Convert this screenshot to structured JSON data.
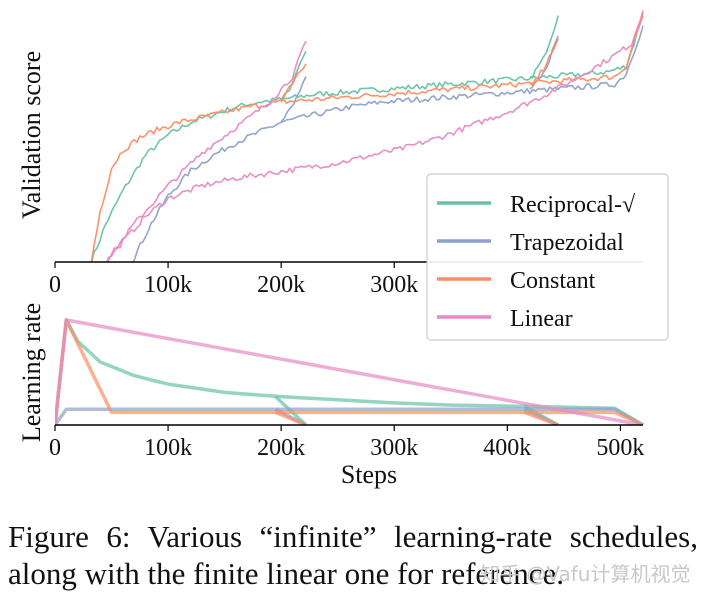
{
  "colors": {
    "Reciprocal-√": "#66c2a5",
    "Trapezoidal": "#8da0cb",
    "Constant": "#fc8d62",
    "Linear": "#e78ac3"
  },
  "chart_data": [
    {
      "type": "line",
      "title": "",
      "xlabel": "",
      "ylabel": "Validation score",
      "xlim": [
        0,
        520000
      ],
      "ylim": [
        0,
        1
      ],
      "xticks": [
        0,
        100000,
        200000,
        300000
      ],
      "xtick_labels": [
        "0",
        "100k",
        "200k",
        "300k"
      ],
      "legend": [
        "Reciprocal-√",
        "Trapezoidal",
        "Constant",
        "Linear"
      ],
      "legend_position": "center-right",
      "series": [
        {
          "name": "Reciprocal-√",
          "points": [
            [
              32000,
              0.0
            ],
            [
              45000,
              0.15
            ],
            [
              60000,
              0.28
            ],
            [
              80000,
              0.42
            ],
            [
              100000,
              0.5
            ],
            [
              120000,
              0.55
            ],
            [
              140000,
              0.58
            ],
            [
              160000,
              0.61
            ],
            [
              180000,
              0.63
            ],
            [
              200000,
              0.64
            ],
            [
              230000,
              0.66
            ],
            [
              260000,
              0.67
            ],
            [
              290000,
              0.68
            ],
            [
              320000,
              0.69
            ],
            [
              350000,
              0.7
            ],
            [
              380000,
              0.71
            ],
            [
              410000,
              0.72
            ],
            [
              440000,
              0.73
            ],
            [
              470000,
              0.74
            ],
            [
              490000,
              0.75
            ],
            [
              505000,
              0.77
            ],
            [
              512000,
              0.86
            ],
            [
              520000,
              0.98
            ]
          ]
        },
        {
          "name": "Reciprocal-√",
          "branch": "decay@200k",
          "points": [
            [
              200000,
              0.64
            ],
            [
              210000,
              0.7
            ],
            [
              222000,
              0.83
            ]
          ]
        },
        {
          "name": "Reciprocal-√",
          "branch": "decay@420k",
          "points": [
            [
              420000,
              0.72
            ],
            [
              432000,
              0.8
            ],
            [
              445000,
              0.97
            ]
          ]
        },
        {
          "name": "Trapezoidal",
          "points": [
            [
              68000,
              0.0
            ],
            [
              85000,
              0.15
            ],
            [
              100000,
              0.26
            ],
            [
              120000,
              0.36
            ],
            [
              140000,
              0.42
            ],
            [
              160000,
              0.47
            ],
            [
              180000,
              0.51
            ],
            [
              200000,
              0.55
            ],
            [
              230000,
              0.58
            ],
            [
              260000,
              0.61
            ],
            [
              290000,
              0.63
            ],
            [
              320000,
              0.64
            ],
            [
              350000,
              0.65
            ],
            [
              380000,
              0.66
            ],
            [
              410000,
              0.67
            ],
            [
              440000,
              0.68
            ],
            [
              470000,
              0.69
            ],
            [
              495000,
              0.7
            ],
            [
              505000,
              0.74
            ],
            [
              512000,
              0.83
            ],
            [
              520000,
              0.93
            ]
          ]
        },
        {
          "name": "Trapezoidal",
          "branch": "decay@200k",
          "points": [
            [
              200000,
              0.55
            ],
            [
              211000,
              0.62
            ],
            [
              222000,
              0.73
            ]
          ]
        },
        {
          "name": "Trapezoidal",
          "branch": "decay@420k",
          "points": [
            [
              420000,
              0.67
            ],
            [
              432000,
              0.74
            ],
            [
              445000,
              0.89
            ]
          ]
        },
        {
          "name": "Constant",
          "points": [
            [
              32000,
              0.0
            ],
            [
              40000,
              0.2
            ],
            [
              50000,
              0.37
            ],
            [
              60000,
              0.44
            ],
            [
              75000,
              0.49
            ],
            [
              90000,
              0.52
            ],
            [
              110000,
              0.55
            ],
            [
              130000,
              0.57
            ],
            [
              150000,
              0.59
            ],
            [
              170000,
              0.61
            ],
            [
              200000,
              0.63
            ],
            [
              230000,
              0.64
            ],
            [
              260000,
              0.65
            ],
            [
              290000,
              0.66
            ],
            [
              320000,
              0.67
            ],
            [
              350000,
              0.68
            ],
            [
              380000,
              0.69
            ],
            [
              410000,
              0.7
            ],
            [
              440000,
              0.71
            ],
            [
              470000,
              0.72
            ],
            [
              495000,
              0.73
            ],
            [
              505000,
              0.77
            ],
            [
              512000,
              0.87
            ],
            [
              520000,
              0.97
            ]
          ]
        },
        {
          "name": "Constant",
          "branch": "decay@200k",
          "points": [
            [
              200000,
              0.63
            ],
            [
              210000,
              0.7
            ],
            [
              222000,
              0.78
            ]
          ]
        },
        {
          "name": "Constant",
          "branch": "decay@420k",
          "points": [
            [
              420000,
              0.7
            ],
            [
              432000,
              0.76
            ],
            [
              445000,
              0.88
            ]
          ]
        },
        {
          "name": "Linear",
          "points": [
            [
              45000,
              0.0
            ],
            [
              60000,
              0.08
            ],
            [
              80000,
              0.18
            ],
            [
              100000,
              0.25
            ],
            [
              130000,
              0.3
            ],
            [
              160000,
              0.33
            ],
            [
              190000,
              0.35
            ],
            [
              220000,
              0.37
            ],
            [
              250000,
              0.39
            ],
            [
              280000,
              0.42
            ],
            [
              310000,
              0.45
            ],
            [
              340000,
              0.49
            ],
            [
              370000,
              0.54
            ],
            [
              400000,
              0.59
            ],
            [
              430000,
              0.65
            ],
            [
              460000,
              0.72
            ],
            [
              490000,
              0.8
            ],
            [
              510000,
              0.86
            ],
            [
              520000,
              0.99
            ]
          ]
        },
        {
          "name": "Linear",
          "branch": "short@220k",
          "points": [
            [
              45000,
              0.0
            ],
            [
              70000,
              0.15
            ],
            [
              100000,
              0.3
            ],
            [
              130000,
              0.43
            ],
            [
              160000,
              0.53
            ],
            [
              190000,
              0.63
            ],
            [
              210000,
              0.73
            ],
            [
              222000,
              0.87
            ]
          ]
        }
      ]
    },
    {
      "type": "line",
      "title": "",
      "xlabel": "Steps",
      "ylabel": "Learning rate",
      "xlim": [
        0,
        520000
      ],
      "ylim": [
        0,
        1
      ],
      "xticks": [
        0,
        100000,
        200000,
        300000,
        400000,
        500000
      ],
      "xtick_labels": [
        "0",
        "100k",
        "200k",
        "300k",
        "400k",
        "500k"
      ],
      "series": [
        {
          "name": "Reciprocal-√",
          "points": [
            [
              0,
              0
            ],
            [
              10000,
              1.0
            ],
            [
              20000,
              0.8
            ],
            [
              40000,
              0.6
            ],
            [
              70000,
              0.47
            ],
            [
              100000,
              0.39
            ],
            [
              150000,
              0.31
            ],
            [
              200000,
              0.27
            ],
            [
              250000,
              0.24
            ],
            [
              300000,
              0.21
            ],
            [
              350000,
              0.19
            ],
            [
              400000,
              0.18
            ],
            [
              450000,
              0.17
            ],
            [
              495000,
              0.16
            ],
            [
              520000,
              0.0
            ]
          ]
        },
        {
          "name": "Reciprocal-√",
          "branch": "cooldown@200k",
          "points": [
            [
              195000,
              0.27
            ],
            [
              222000,
              0.0
            ]
          ]
        },
        {
          "name": "Reciprocal-√",
          "branch": "cooldown@420k",
          "points": [
            [
              415000,
              0.18
            ],
            [
              445000,
              0.0
            ]
          ]
        },
        {
          "name": "Trapezoidal",
          "points": [
            [
              0,
              0
            ],
            [
              10000,
              0.15
            ],
            [
              495000,
              0.15
            ],
            [
              520000,
              0.0
            ]
          ]
        },
        {
          "name": "Trapezoidal",
          "branch": "cooldown@200k",
          "points": [
            [
              195000,
              0.15
            ],
            [
              222000,
              0.0
            ]
          ]
        },
        {
          "name": "Trapezoidal",
          "branch": "cooldown@420k",
          "points": [
            [
              415000,
              0.15
            ],
            [
              445000,
              0.0
            ]
          ]
        },
        {
          "name": "Constant",
          "points": [
            [
              0,
              0
            ],
            [
              10000,
              1.0
            ],
            [
              50000,
              0.12
            ],
            [
              495000,
              0.12
            ],
            [
              520000,
              0.0
            ]
          ]
        },
        {
          "name": "Constant",
          "branch": "cooldown@200k",
          "points": [
            [
              195000,
              0.12
            ],
            [
              222000,
              0.0
            ]
          ]
        },
        {
          "name": "Constant",
          "branch": "cooldown@420k",
          "points": [
            [
              415000,
              0.12
            ],
            [
              445000,
              0.0
            ]
          ]
        },
        {
          "name": "Linear",
          "points": [
            [
              0,
              0
            ],
            [
              10000,
              1.0
            ],
            [
              520000,
              0.0
            ]
          ]
        }
      ]
    }
  ],
  "caption": "Figure 6: Various “infinite” learning-rate schedules, along with the finite linear one for reference.",
  "watermark": "知乎 @Vafu计算机视觉"
}
